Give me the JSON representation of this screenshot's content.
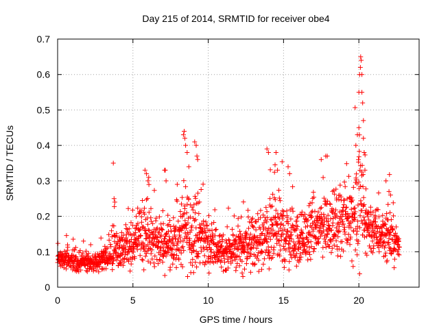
{
  "chart_data": {
    "type": "scatter",
    "title": "Day 215 of 2014, SRMTID for receiver obe4",
    "xlabel": "GPS time / hours",
    "ylabel": "SRMTID / TECUs",
    "xlim": [
      0,
      24
    ],
    "ylim": [
      0,
      0.7
    ],
    "x_ticks": [
      0,
      5,
      10,
      15,
      20
    ],
    "x_tick_labels": [
      "0",
      "5",
      "10",
      "15",
      "20"
    ],
    "y_ticks": [
      0,
      0.1,
      0.2,
      0.3,
      0.4,
      0.5,
      0.6,
      0.7
    ],
    "y_tick_labels": [
      "0",
      "0.1",
      "0.2",
      "0.3",
      "0.4",
      "0.5",
      "0.6",
      "0.7"
    ],
    "grid": true,
    "marker": "+",
    "series": [
      {
        "name": "SRMTID",
        "color": "#ff0000",
        "profile": {
          "x": [
            0,
            0.5,
            1,
            1.5,
            2,
            2.5,
            3,
            3.5,
            3.7,
            4,
            4.5,
            5,
            5.3,
            5.8,
            6.2,
            6.8,
            7.1,
            7.5,
            8,
            8.4,
            8.7,
            9,
            9.3,
            9.8,
            10.3,
            10.8,
            11.3,
            11.8,
            12.2,
            12.6,
            13,
            13.5,
            13.9,
            14.2,
            14.6,
            15,
            15.5,
            16,
            16.5,
            17,
            17.5,
            18,
            18.5,
            19,
            19.5,
            19.8,
            20,
            20.2,
            20.5,
            21,
            21.5,
            22,
            22.5,
            22.7
          ],
          "center": [
            0.08,
            0.08,
            0.075,
            0.075,
            0.07,
            0.07,
            0.08,
            0.09,
            0.1,
            0.1,
            0.11,
            0.12,
            0.14,
            0.15,
            0.13,
            0.12,
            0.13,
            0.13,
            0.14,
            0.16,
            0.17,
            0.16,
            0.15,
            0.13,
            0.12,
            0.1,
            0.1,
            0.11,
            0.12,
            0.12,
            0.12,
            0.13,
            0.14,
            0.15,
            0.16,
            0.15,
            0.14,
            0.13,
            0.14,
            0.16,
            0.17,
            0.18,
            0.18,
            0.19,
            0.2,
            0.21,
            0.25,
            0.22,
            0.18,
            0.16,
            0.15,
            0.15,
            0.12,
            0.1
          ],
          "spread": [
            0.02,
            0.025,
            0.025,
            0.02,
            0.02,
            0.02,
            0.025,
            0.03,
            0.04,
            0.04,
            0.045,
            0.05,
            0.06,
            0.08,
            0.06,
            0.055,
            0.06,
            0.06,
            0.07,
            0.1,
            0.1,
            0.09,
            0.08,
            0.06,
            0.05,
            0.04,
            0.04,
            0.05,
            0.05,
            0.06,
            0.06,
            0.07,
            0.08,
            0.08,
            0.08,
            0.08,
            0.07,
            0.06,
            0.06,
            0.07,
            0.07,
            0.07,
            0.07,
            0.07,
            0.08,
            0.12,
            0.18,
            0.1,
            0.07,
            0.06,
            0.05,
            0.06,
            0.04,
            0.03
          ]
        },
        "highlights": [
          [
            3.7,
            0.35
          ],
          [
            3.75,
            0.25
          ],
          [
            3.8,
            0.24
          ],
          [
            5.8,
            0.33
          ],
          [
            5.9,
            0.32
          ],
          [
            6.0,
            0.3
          ],
          [
            6.05,
            0.31
          ],
          [
            7.1,
            0.33
          ],
          [
            7.15,
            0.33
          ],
          [
            7.2,
            0.3
          ],
          [
            8.35,
            0.43
          ],
          [
            8.4,
            0.44
          ],
          [
            8.45,
            0.42
          ],
          [
            8.5,
            0.4
          ],
          [
            8.6,
            0.38
          ],
          [
            9.1,
            0.41
          ],
          [
            9.2,
            0.4
          ],
          [
            9.25,
            0.37
          ],
          [
            9.3,
            0.36
          ],
          [
            13.9,
            0.39
          ],
          [
            14.0,
            0.38
          ],
          [
            14.5,
            0.38
          ],
          [
            14.6,
            0.33
          ],
          [
            15.3,
            0.34
          ],
          [
            15.4,
            0.32
          ],
          [
            17.8,
            0.37
          ],
          [
            17.9,
            0.37
          ],
          [
            17.5,
            0.36
          ],
          [
            19.8,
            0.4
          ],
          [
            19.9,
            0.43
          ],
          [
            20.0,
            0.45
          ],
          [
            20.0,
            0.55
          ],
          [
            20.05,
            0.6
          ],
          [
            20.1,
            0.62
          ],
          [
            20.12,
            0.65
          ],
          [
            20.15,
            0.64
          ],
          [
            20.2,
            0.6
          ],
          [
            20.2,
            0.55
          ],
          [
            20.25,
            0.52
          ],
          [
            20.3,
            0.47
          ],
          [
            20.3,
            0.42
          ],
          [
            20.35,
            0.38
          ],
          [
            20.4,
            0.33
          ],
          [
            21.8,
            0.3
          ],
          [
            22.0,
            0.27
          ],
          [
            22.1,
            0.26
          ],
          [
            12.3,
            0.03
          ],
          [
            12.25,
            0.04
          ]
        ]
      }
    ]
  }
}
